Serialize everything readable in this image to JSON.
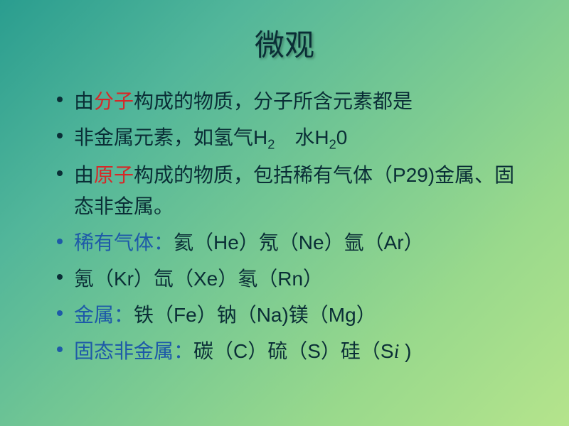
{
  "title": "微观",
  "bullets": [
    {
      "bullet_color": "dark",
      "segments": [
        {
          "text": "由",
          "class": ""
        },
        {
          "text": "分子",
          "class": "red"
        },
        {
          "text": "构成的物质，分子所含元素都是",
          "class": ""
        }
      ]
    },
    {
      "bullet_color": "dark",
      "segments": [
        {
          "text": "非金属元素，如氢气H",
          "class": ""
        },
        {
          "text": "2",
          "class": "",
          "sub": true
        },
        {
          "text": "　水H",
          "class": ""
        },
        {
          "text": "2",
          "class": "",
          "sub": true
        },
        {
          "text": "0",
          "class": ""
        }
      ]
    },
    {
      "bullet_color": "dark",
      "segments": [
        {
          "text": "由",
          "class": ""
        },
        {
          "text": "原子",
          "class": "red"
        },
        {
          "text": "构成的物质，包括稀有气体（P29)金属、固态非金属。",
          "class": ""
        }
      ]
    },
    {
      "bullet_color": "blue",
      "segments": [
        {
          "text": "稀有气体：",
          "class": "blue"
        },
        {
          "text": "氦（He）氖（Ne）氩（Ar）",
          "class": ""
        }
      ]
    },
    {
      "bullet_color": "dark",
      "segments": [
        {
          "text": "氪（Kr）氙（Xe）氡（Rn）",
          "class": ""
        }
      ]
    },
    {
      "bullet_color": "blue",
      "segments": [
        {
          "text": "金属：",
          "class": "blue"
        },
        {
          "text": "铁（Fe）钠（Na)镁（Mg）",
          "class": ""
        }
      ]
    },
    {
      "bullet_color": "blue",
      "segments": [
        {
          "text": "固态非金属：",
          "class": "blue"
        },
        {
          "text": "碳（C）硫（S）硅（S",
          "class": ""
        },
        {
          "text": "i",
          "class": "italic"
        },
        {
          "text": " )",
          "class": ""
        }
      ]
    }
  ],
  "style": {
    "background_gradient": [
      "#2a9d8f",
      "#52b69a",
      "#76c893",
      "#99d98c",
      "#b5e48c"
    ],
    "title_fontsize": 42,
    "body_fontsize": 28,
    "text_color": "#0a2e36",
    "red_color": "#d62828",
    "blue_color": "#1e5aa8"
  }
}
